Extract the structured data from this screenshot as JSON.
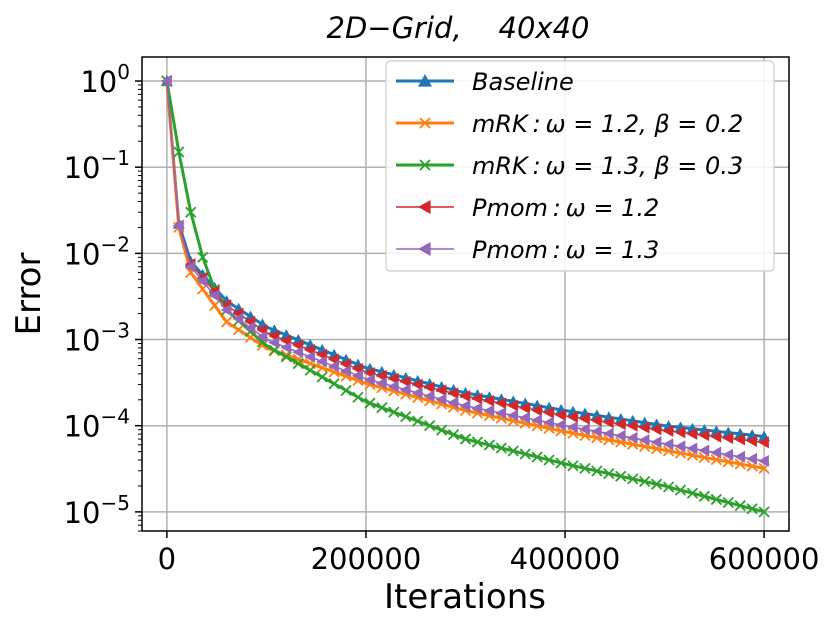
{
  "chart_data": {
    "type": "line",
    "title": "2D−Grid,    40x40",
    "xlabel": "Iterations",
    "ylabel": "Error",
    "yscale": "log",
    "xlim": [
      -25000,
      625000
    ],
    "ylim": [
      6e-06,
      1.9
    ],
    "grid": true,
    "legend_position": "top-right",
    "xticks": [
      0,
      200000,
      400000,
      600000
    ],
    "xtick_labels": [
      "0",
      "200000",
      "400000",
      "600000"
    ],
    "yticks": [
      1,
      0.1,
      0.01,
      0.001,
      0.0001,
      1e-05
    ],
    "ytick_labels": [
      {
        "base": "10",
        "exp": "0"
      },
      {
        "base": "10",
        "exp": "−1"
      },
      {
        "base": "10",
        "exp": "−2"
      },
      {
        "base": "10",
        "exp": "−3"
      },
      {
        "base": "10",
        "exp": "−4"
      },
      {
        "base": "10",
        "exp": "−5"
      }
    ],
    "series": [
      {
        "name": "Baseline",
        "legend_label": "Baseline",
        "color": "#1f77b4",
        "marker": "triangle-up",
        "linewidth": 3,
        "points": [
          [
            0,
            1.0
          ],
          [
            12000,
            0.022
          ],
          [
            24000,
            0.008
          ],
          [
            60000,
            0.0028
          ],
          [
            100000,
            0.0014
          ],
          [
            200000,
            0.00047
          ],
          [
            300000,
            0.00024
          ],
          [
            400000,
            0.00015
          ],
          [
            500000,
            0.0001
          ],
          [
            600000,
            7.5e-05
          ]
        ]
      },
      {
        "name": "mRK omega=1.2 beta=0.2",
        "legend_label": "mRK : ω = 1.2, β = 0.2",
        "color": "#ff7f0e",
        "marker": "x",
        "linewidth": 3,
        "points": [
          [
            0,
            1.0
          ],
          [
            12000,
            0.02
          ],
          [
            24000,
            0.006
          ],
          [
            60000,
            0.0016
          ],
          [
            100000,
            0.0008
          ],
          [
            200000,
            0.00031
          ],
          [
            300000,
            0.00015
          ],
          [
            400000,
            8.5e-05
          ],
          [
            500000,
            5.2e-05
          ],
          [
            600000,
            3.2e-05
          ]
        ]
      },
      {
        "name": "mRK omega=1.3 beta=0.3",
        "legend_label": "mRK : ω = 1.3, β = 0.3",
        "color": "#2ca02c",
        "marker": "x",
        "linewidth": 3,
        "points": [
          [
            0,
            1.0
          ],
          [
            12000,
            0.15
          ],
          [
            24000,
            0.03
          ],
          [
            36000,
            0.009
          ],
          [
            48000,
            0.0038
          ],
          [
            60000,
            0.0022
          ],
          [
            100000,
            0.00085
          ],
          [
            200000,
            0.00019
          ],
          [
            300000,
            7e-05
          ],
          [
            400000,
            3.6e-05
          ],
          [
            500000,
            2e-05
          ],
          [
            600000,
            1e-05
          ]
        ]
      },
      {
        "name": "Pmom omega=1.2",
        "legend_label": "Pmom : ω = 1.2",
        "color": "#d62728",
        "marker": "triangle-left",
        "linewidth": 1.5,
        "points": [
          [
            0,
            1.0
          ],
          [
            12000,
            0.021
          ],
          [
            24000,
            0.0075
          ],
          [
            60000,
            0.0025
          ],
          [
            100000,
            0.0012
          ],
          [
            200000,
            0.00042
          ],
          [
            300000,
            0.00022
          ],
          [
            400000,
            0.00013
          ],
          [
            500000,
            8.8e-05
          ],
          [
            600000,
            6.4e-05
          ]
        ]
      },
      {
        "name": "Pmom omega=1.3",
        "legend_label": "Pmom : ω = 1.3",
        "color": "#9467bd",
        "marker": "triangle-left",
        "linewidth": 1.5,
        "points": [
          [
            0,
            1.0
          ],
          [
            12000,
            0.021
          ],
          [
            24000,
            0.007
          ],
          [
            60000,
            0.0022
          ],
          [
            100000,
            0.001
          ],
          [
            200000,
            0.00035
          ],
          [
            300000,
            0.00017
          ],
          [
            400000,
            0.0001
          ],
          [
            500000,
            6.2e-05
          ],
          [
            600000,
            3.9e-05
          ]
        ]
      }
    ]
  }
}
